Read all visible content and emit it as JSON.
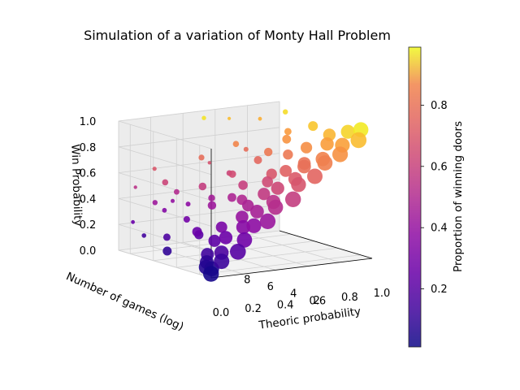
{
  "chart_data": {
    "type": "scatter",
    "projection": "3d",
    "title": "Simulation of a variation of Monty Hall Problem",
    "xlabel": "Theoric probability",
    "ylabel": "Number of games (log)",
    "zlabel": "Win Probability",
    "xlim": [
      0,
      1
    ],
    "ylim": [
      1,
      9
    ],
    "zlim": [
      0,
      1
    ],
    "x_ticks": [
      "0.0",
      "0.2",
      "0.4",
      "0.6",
      "0.8",
      "1.0"
    ],
    "y_ticks": [
      "2",
      "4",
      "6",
      "8"
    ],
    "z_ticks": [
      "0.0",
      "0.2",
      "0.4",
      "0.6",
      "0.8",
      "1.0"
    ],
    "grid": true,
    "colormap": "plasma",
    "colorbar": {
      "label": "Proportion of winning doors",
      "ticks": [
        "0.2",
        "0.4",
        "0.6",
        "0.8"
      ],
      "range": [
        0.01,
        0.99
      ]
    },
    "point_size_encodes": "Number of games (log)",
    "points": [
      {
        "x": 0.02,
        "y": 1.3,
        "z": 0.02
      },
      {
        "x": 0.04,
        "y": 2.0,
        "z": 0.05
      },
      {
        "x": 0.06,
        "y": 1.8,
        "z": 0.04
      },
      {
        "x": 0.08,
        "y": 2.5,
        "z": 0.07
      },
      {
        "x": 0.1,
        "y": 1.5,
        "z": 0.1
      },
      {
        "x": 0.12,
        "y": 3.0,
        "z": 0.11
      },
      {
        "x": 0.15,
        "y": 2.2,
        "z": 0.14
      },
      {
        "x": 0.18,
        "y": 1.2,
        "z": 0.17
      },
      {
        "x": 0.2,
        "y": 3.5,
        "z": 0.19
      },
      {
        "x": 0.22,
        "y": 2.8,
        "z": 0.23
      },
      {
        "x": 0.25,
        "y": 1.6,
        "z": 0.24
      },
      {
        "x": 0.28,
        "y": 4.0,
        "z": 0.27
      },
      {
        "x": 0.3,
        "y": 2.4,
        "z": 0.31
      },
      {
        "x": 0.33,
        "y": 1.9,
        "z": 0.33
      },
      {
        "x": 0.35,
        "y": 3.2,
        "z": 0.36
      },
      {
        "x": 0.38,
        "y": 1.4,
        "z": 0.37
      },
      {
        "x": 0.4,
        "y": 2.6,
        "z": 0.41
      },
      {
        "x": 0.43,
        "y": 3.8,
        "z": 0.42
      },
      {
        "x": 0.45,
        "y": 1.7,
        "z": 0.46
      },
      {
        "x": 0.48,
        "y": 2.3,
        "z": 0.48
      },
      {
        "x": 0.5,
        "y": 3.4,
        "z": 0.51
      },
      {
        "x": 0.53,
        "y": 1.3,
        "z": 0.52
      },
      {
        "x": 0.55,
        "y": 2.9,
        "z": 0.56
      },
      {
        "x": 0.58,
        "y": 4.2,
        "z": 0.57
      },
      {
        "x": 0.6,
        "y": 1.8,
        "z": 0.61
      },
      {
        "x": 0.63,
        "y": 2.5,
        "z": 0.63
      },
      {
        "x": 0.65,
        "y": 3.6,
        "z": 0.66
      },
      {
        "x": 0.68,
        "y": 1.5,
        "z": 0.67
      },
      {
        "x": 0.7,
        "y": 2.7,
        "z": 0.71
      },
      {
        "x": 0.73,
        "y": 3.1,
        "z": 0.72
      },
      {
        "x": 0.75,
        "y": 1.6,
        "z": 0.76
      },
      {
        "x": 0.78,
        "y": 2.2,
        "z": 0.77
      },
      {
        "x": 0.8,
        "y": 3.9,
        "z": 0.81
      },
      {
        "x": 0.83,
        "y": 1.4,
        "z": 0.82
      },
      {
        "x": 0.85,
        "y": 2.8,
        "z": 0.86
      },
      {
        "x": 0.88,
        "y": 1.9,
        "z": 0.87
      },
      {
        "x": 0.9,
        "y": 3.3,
        "z": 0.91
      },
      {
        "x": 0.93,
        "y": 1.2,
        "z": 0.92
      },
      {
        "x": 0.95,
        "y": 2.4,
        "z": 0.95
      },
      {
        "x": 0.98,
        "y": 1.7,
        "z": 0.98
      },
      {
        "x": 0.05,
        "y": 5.5,
        "z": 0.08
      },
      {
        "x": 0.12,
        "y": 6.5,
        "z": 0.15
      },
      {
        "x": 0.2,
        "y": 5.0,
        "z": 0.22
      },
      {
        "x": 0.28,
        "y": 7.0,
        "z": 0.25
      },
      {
        "x": 0.35,
        "y": 5.8,
        "z": 0.38
      },
      {
        "x": 0.42,
        "y": 6.8,
        "z": 0.4
      },
      {
        "x": 0.5,
        "y": 5.2,
        "z": 0.53
      },
      {
        "x": 0.58,
        "y": 7.5,
        "z": 0.55
      },
      {
        "x": 0.65,
        "y": 6.0,
        "z": 0.68
      },
      {
        "x": 0.72,
        "y": 8.0,
        "z": 0.7
      },
      {
        "x": 0.8,
        "y": 5.6,
        "z": 0.83
      },
      {
        "x": 0.88,
        "y": 6.6,
        "z": 0.85
      },
      {
        "x": 0.95,
        "y": 7.8,
        "z": 0.96
      },
      {
        "x": 0.3,
        "y": 8.5,
        "z": 0.35
      },
      {
        "x": 0.55,
        "y": 8.8,
        "z": 0.6
      },
      {
        "x": 0.1,
        "y": 8.2,
        "z": 0.12
      },
      {
        "x": 0.75,
        "y": 4.8,
        "z": 0.74
      },
      {
        "x": 0.45,
        "y": 4.6,
        "z": 0.44
      },
      {
        "x": 0.85,
        "y": 8.6,
        "z": 0.9
      },
      {
        "x": 0.62,
        "y": 4.4,
        "z": 0.62
      },
      {
        "x": 0.14,
        "y": 7.8,
        "z": 0.38
      },
      {
        "x": 0.18,
        "y": 8.4,
        "z": 0.62
      },
      {
        "x": 0.09,
        "y": 8.8,
        "z": 0.48
      },
      {
        "x": 0.22,
        "y": 8.1,
        "z": 0.3
      },
      {
        "x": 0.16,
        "y": 7.2,
        "z": 0.55
      },
      {
        "x": 0.06,
        "y": 8.6,
        "z": 0.22
      },
      {
        "x": 0.26,
        "y": 7.6,
        "z": 0.45
      },
      {
        "x": 0.48,
        "y": 8.3,
        "z": 0.97
      },
      {
        "x": 0.4,
        "y": 7.4,
        "z": 0.7
      },
      {
        "x": 0.32,
        "y": 6.2,
        "z": 0.52
      },
      {
        "x": 0.68,
        "y": 8.9,
        "z": 0.92
      },
      {
        "x": 0.24,
        "y": 5.4,
        "z": 0.18
      },
      {
        "x": 0.52,
        "y": 6.4,
        "z": 0.58
      },
      {
        "x": 0.6,
        "y": 7.2,
        "z": 0.78
      },
      {
        "x": 0.92,
        "y": 5.0,
        "z": 0.93
      },
      {
        "x": 0.7,
        "y": 5.8,
        "z": 0.74
      },
      {
        "x": 0.36,
        "y": 8.0,
        "z": 0.33
      },
      {
        "x": 0.46,
        "y": 5.6,
        "z": 0.43
      }
    ]
  }
}
